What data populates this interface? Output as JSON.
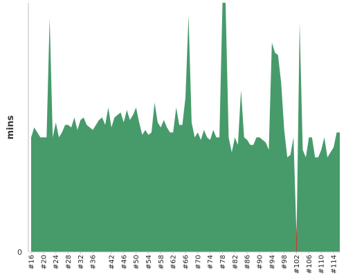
{
  "chart_data": {
    "type": "area",
    "ylabel": "mins",
    "y_zero_label": "0",
    "ylim": [
      0,
      100
    ],
    "grid": false,
    "colors": {
      "area": "#479B6B",
      "highlight": "#D0392B",
      "axis": "#bbbbbb"
    },
    "x": [
      16,
      17,
      18,
      19,
      20,
      21,
      22,
      23,
      24,
      25,
      26,
      27,
      28,
      29,
      30,
      31,
      32,
      33,
      34,
      35,
      36,
      37,
      38,
      39,
      40,
      41,
      42,
      43,
      44,
      45,
      46,
      47,
      48,
      49,
      50,
      51,
      52,
      53,
      54,
      55,
      56,
      57,
      58,
      59,
      60,
      61,
      62,
      63,
      64,
      65,
      66,
      67,
      68,
      69,
      70,
      71,
      72,
      73,
      74,
      75,
      76,
      77,
      78,
      79,
      80,
      81,
      82,
      83,
      84,
      85,
      86,
      87,
      88,
      89,
      90,
      91,
      92,
      93,
      94,
      95,
      96,
      97,
      98,
      99,
      100,
      101,
      102,
      103,
      104,
      105,
      106,
      107,
      108,
      109,
      110,
      111,
      112,
      113,
      114,
      115,
      116
    ],
    "tick_labels": [
      "#16",
      "#20",
      "#24",
      "#28",
      "#32",
      "#36",
      "#42",
      "#46",
      "#50",
      "#54",
      "#58",
      "#62",
      "#66",
      "#70",
      "#74",
      "#78",
      "#82",
      "#86",
      "#90",
      "#94",
      "#98",
      "#102",
      "#106",
      "#110",
      "#114"
    ],
    "tick_values": [
      16,
      20,
      24,
      28,
      32,
      36,
      42,
      46,
      50,
      54,
      58,
      62,
      66,
      70,
      74,
      78,
      82,
      86,
      90,
      94,
      98,
      102,
      106,
      110,
      114
    ],
    "values": [
      46,
      50,
      48,
      46,
      46,
      46,
      94,
      46,
      52,
      46,
      48,
      51,
      51,
      50,
      54,
      49,
      53,
      54,
      51,
      50,
      49,
      51,
      53,
      54,
      51,
      58,
      50,
      54,
      55,
      56,
      52,
      57,
      53,
      55,
      58,
      52,
      47,
      49,
      47,
      48,
      60,
      52,
      50,
      53,
      50,
      48,
      48,
      58,
      51,
      51,
      62,
      95,
      52,
      46,
      48,
      45,
      49,
      46,
      45,
      49,
      46,
      46,
      100,
      100,
      46,
      40,
      46,
      43,
      65,
      46,
      45,
      43,
      43,
      46,
      46,
      45,
      44,
      41,
      84,
      80,
      79,
      68,
      49,
      38,
      39,
      46,
      6,
      92,
      41,
      38,
      46,
      46,
      38,
      38,
      41,
      46,
      38,
      40,
      42,
      48,
      48
    ],
    "highlight_index": 86
  }
}
